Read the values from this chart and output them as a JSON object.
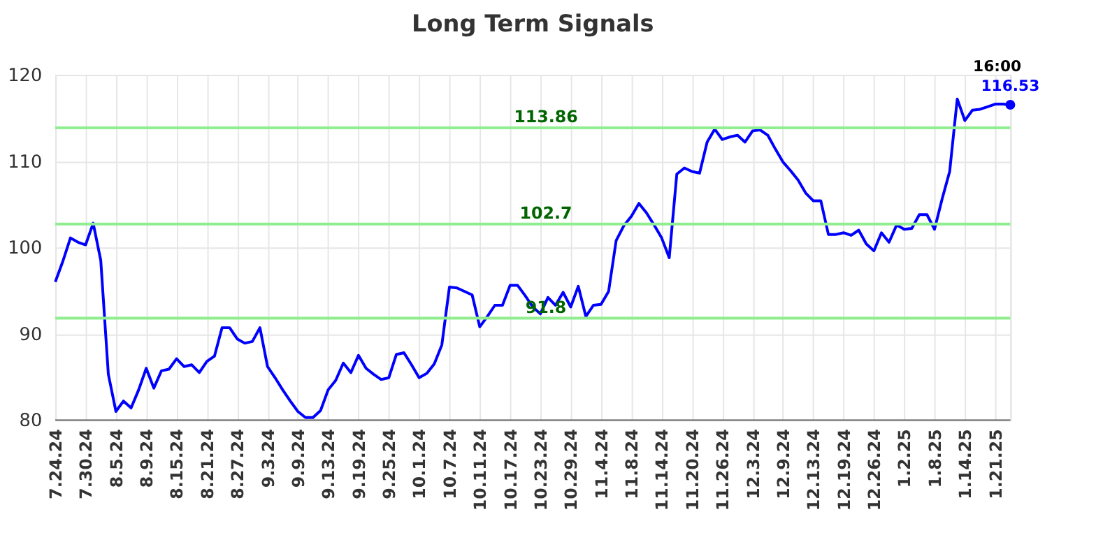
{
  "chart_data": {
    "type": "line",
    "title": "Long Term Signals",
    "categories": [
      "7.24.24",
      null,
      null,
      null,
      "7.30.24",
      null,
      null,
      null,
      "8.5.24",
      null,
      null,
      null,
      "8.9.24",
      null,
      null,
      null,
      "8.15.24",
      null,
      null,
      null,
      "8.21.24",
      null,
      null,
      null,
      "8.27.24",
      null,
      null,
      null,
      "9.3.24",
      null,
      null,
      null,
      "9.9.24",
      null,
      null,
      null,
      "9.13.24",
      null,
      null,
      null,
      "9.19.24",
      null,
      null,
      null,
      "9.25.24",
      null,
      null,
      null,
      "10.1.24",
      null,
      null,
      null,
      "10.7.24",
      null,
      null,
      null,
      "10.11.24",
      null,
      null,
      null,
      "10.17.24",
      null,
      null,
      null,
      "10.23.24",
      null,
      null,
      null,
      "10.29.24",
      null,
      null,
      null,
      "11.4.24",
      null,
      null,
      null,
      "11.8.24",
      null,
      null,
      null,
      "11.14.24",
      null,
      null,
      null,
      "11.20.24",
      null,
      null,
      null,
      "11.26.24",
      null,
      null,
      null,
      "12.3.24",
      null,
      null,
      null,
      "12.9.24",
      null,
      null,
      null,
      "12.13.24",
      null,
      null,
      null,
      "12.19.24",
      null,
      null,
      null,
      "12.26.24",
      null,
      null,
      null,
      "1.2.25",
      null,
      null,
      null,
      "1.8.25",
      null,
      null,
      null,
      "1.14.25",
      null,
      null,
      null,
      "1.21.25",
      null,
      null
    ],
    "series": [
      {
        "color": "#0000ff",
        "values": [
          96.0,
          98.4,
          101.1,
          100.6,
          100.3,
          102.8,
          98.5,
          85.3,
          81.0,
          82.2,
          81.4,
          83.5,
          86.0,
          83.7,
          85.7,
          85.9,
          87.1,
          86.2,
          86.4,
          85.5,
          86.8,
          87.4,
          90.7,
          90.7,
          89.4,
          88.9,
          89.1,
          90.7,
          86.2,
          84.9,
          83.5,
          82.2,
          81.0,
          80.3,
          80.3,
          81.1,
          83.5,
          84.6,
          86.6,
          85.5,
          87.5,
          86.0,
          85.3,
          84.7,
          84.9,
          87.6,
          87.8,
          86.4,
          84.9,
          85.4,
          86.5,
          88.7,
          95.4,
          95.3,
          94.9,
          94.5,
          90.8,
          92.0,
          93.3,
          93.3,
          95.6,
          95.6,
          94.4,
          93.1,
          92.3,
          94.2,
          93.3,
          94.8,
          93.1,
          95.5,
          92.0,
          93.3,
          93.4,
          94.9,
          100.8,
          102.5,
          103.6,
          105.1,
          104.0,
          102.6,
          101.1,
          98.8,
          108.5,
          109.2,
          108.8,
          108.6,
          112.2,
          113.7,
          112.5,
          112.8,
          113.0,
          112.2,
          113.5,
          113.6,
          113.0,
          111.4,
          109.9,
          108.9,
          107.8,
          106.3,
          105.4,
          105.4,
          101.5,
          101.5,
          101.7,
          101.4,
          102.0,
          100.4,
          99.6,
          101.7,
          100.6,
          102.6,
          102.1,
          102.2,
          103.8,
          103.8,
          102.1,
          105.6,
          108.8,
          117.2,
          114.7,
          115.9,
          116.0,
          116.3,
          116.6,
          116.6,
          116.53
        ],
        "value_labels": [
          null,
          null,
          null,
          null,
          null,
          null,
          null,
          null,
          null,
          null,
          null,
          null,
          null,
          null,
          null,
          null,
          null,
          null,
          null,
          null,
          null,
          null,
          null,
          null,
          null,
          null,
          null,
          null,
          null,
          null,
          null,
          null,
          null,
          null,
          null,
          null,
          null,
          null,
          null,
          null,
          null,
          null,
          null,
          null,
          null,
          null,
          null,
          null,
          null,
          null,
          null,
          null,
          null,
          null,
          null,
          null,
          null,
          null,
          null,
          null,
          null,
          null,
          null,
          null,
          null,
          null,
          null,
          null,
          null,
          null,
          null,
          null,
          null,
          null,
          null,
          null,
          null,
          null,
          null,
          null,
          null,
          null,
          null,
          null,
          null,
          null,
          null,
          null,
          null,
          null,
          null,
          null,
          null,
          null,
          null,
          null,
          null,
          null,
          null,
          null,
          null,
          null,
          null,
          null,
          null,
          null,
          null,
          null,
          null,
          null,
          null,
          null,
          null,
          null,
          null,
          null,
          null,
          null,
          null,
          null,
          null,
          null,
          null,
          null,
          null,
          null,
          "116.53"
        ]
      }
    ],
    "annotations": [
      "16:00"
    ],
    "ref_lines": [
      {
        "axis": "y",
        "value": 113.86,
        "label": "113.86",
        "color": "#90ee90"
      },
      {
        "axis": "y",
        "value": 102.7,
        "label": "102.7",
        "color": "#90ee90"
      },
      {
        "axis": "y",
        "value": 91.8,
        "label": "91.8",
        "color": "#90ee90"
      }
    ],
    "ylim": [
      80,
      120
    ],
    "yticks": [
      80,
      90,
      100,
      110,
      120
    ],
    "grid": true,
    "marker": "none",
    "line_style": "solid"
  }
}
